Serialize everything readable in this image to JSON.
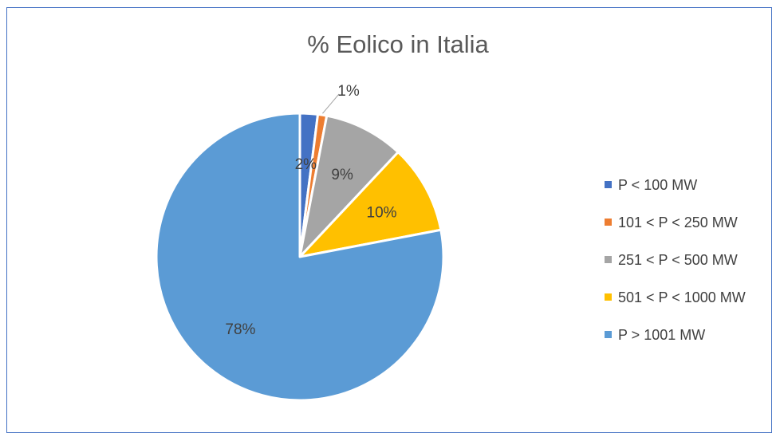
{
  "chart_data": {
    "type": "pie",
    "title": "% Eolico in Italia",
    "slices": [
      {
        "label": "P < 100 MW",
        "value": 2,
        "display": "2%",
        "color": "#4472c4"
      },
      {
        "label": "101 < P < 250 MW",
        "value": 1,
        "display": "1%",
        "color": "#ed7d31"
      },
      {
        "label": "251 < P < 500 MW",
        "value": 9,
        "display": "9%",
        "color": "#a5a5a5"
      },
      {
        "label": "501 < P < 1000 MW",
        "value": 10,
        "display": "10%",
        "color": "#ffc000"
      },
      {
        "label": "P > 1001 MW",
        "value": 78,
        "display": "78%",
        "color": "#5b9bd5"
      }
    ],
    "legend_position": "right"
  }
}
